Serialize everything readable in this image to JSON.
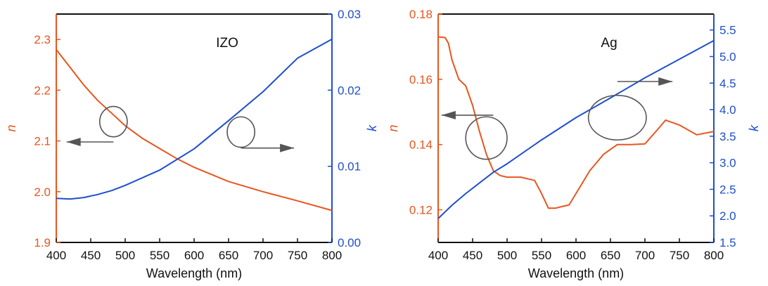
{
  "colors": {
    "n_series": "#e8561e",
    "k_series": "#1f4fcf",
    "frame": "#111111",
    "annotation": "#555555"
  },
  "chart_data": [
    {
      "type": "line",
      "annotation": "IZO",
      "xlabel": "Wavelength (nm)",
      "ylabel_left": "n",
      "ylabel_right": "k",
      "xlim": [
        400,
        800
      ],
      "ylim_left": [
        1.9,
        2.35
      ],
      "ylim_right": [
        0.0,
        0.03
      ],
      "x_ticks": [
        "400",
        "450",
        "500",
        "550",
        "600",
        "650",
        "700",
        "750",
        "800"
      ],
      "y_left_ticks": [
        "1.9",
        "2.0",
        "2.1",
        "2.2",
        "2.3"
      ],
      "y_right_ticks": [
        "0.00",
        "0.01",
        "0.02",
        "0.03"
      ],
      "series": [
        {
          "axis": "left",
          "color": "#e8561e",
          "x": [
            400,
            420,
            440,
            460,
            480,
            500,
            525,
            550,
            575,
            600,
            650,
            700,
            750,
            800
          ],
          "y": [
            2.28,
            2.245,
            2.21,
            2.18,
            2.155,
            2.13,
            2.105,
            2.085,
            2.065,
            2.048,
            2.02,
            2.0,
            1.982,
            1.963
          ]
        },
        {
          "axis": "right",
          "color": "#1f4fcf",
          "x": [
            400,
            420,
            440,
            460,
            480,
            500,
            550,
            600,
            650,
            700,
            750,
            800
          ],
          "y": [
            0.0058,
            0.0057,
            0.0059,
            0.0063,
            0.0068,
            0.0075,
            0.0095,
            0.0123,
            0.016,
            0.0198,
            0.0242,
            0.0267
          ]
        }
      ],
      "markers": [
        {
          "center": [
            483,
            2.138
          ],
          "rx": 20,
          "ry_left": 0.03,
          "arrow_from": [
            483,
            2.098
          ],
          "arrow_to": [
            415,
            2.098
          ]
        },
        {
          "center": [
            668,
            0.0145
          ],
          "rx": 20,
          "ry_right": 0.002,
          "arrow_from": [
            668,
            0.0124
          ],
          "arrow_to": [
            745,
            0.0124
          ]
        }
      ]
    },
    {
      "type": "line",
      "annotation": "Ag",
      "xlabel": "Wavelength (nm)",
      "ylabel_left": "n",
      "ylabel_right": "k",
      "xlim": [
        400,
        800
      ],
      "ylim_left": [
        0.11,
        0.18
      ],
      "ylim_right": [
        1.5,
        5.8
      ],
      "x_ticks": [
        "400",
        "450",
        "500",
        "550",
        "600",
        "650",
        "700",
        "750",
        "800"
      ],
      "y_left_ticks": [
        "0.12",
        "0.14",
        "0.16",
        "0.18"
      ],
      "y_right_ticks": [
        "1.5",
        "2.0",
        "2.5",
        "3.0",
        "3.5",
        "4.0",
        "4.5",
        "5.0",
        "5.5"
      ],
      "series": [
        {
          "axis": "left",
          "color": "#e8561e",
          "x": [
            400,
            410,
            415,
            420,
            430,
            440,
            450,
            460,
            470,
            480,
            490,
            500,
            520,
            540,
            550,
            560,
            570,
            580,
            590,
            600,
            620,
            640,
            660,
            680,
            700,
            720,
            730,
            750,
            775,
            800
          ],
          "y": [
            0.173,
            0.1728,
            0.171,
            0.166,
            0.16,
            0.158,
            0.152,
            0.144,
            0.137,
            0.132,
            0.1305,
            0.13,
            0.13,
            0.129,
            0.125,
            0.1205,
            0.1205,
            0.121,
            0.1215,
            0.125,
            0.132,
            0.137,
            0.14,
            0.14,
            0.1402,
            0.145,
            0.1475,
            0.146,
            0.143,
            0.144
          ]
        },
        {
          "axis": "right",
          "color": "#1f4fcf",
          "x": [
            400,
            420,
            440,
            460,
            480,
            500,
            550,
            600,
            650,
            700,
            750,
            800
          ],
          "y": [
            1.95,
            2.2,
            2.42,
            2.62,
            2.82,
            2.98,
            3.43,
            3.85,
            4.22,
            4.6,
            4.95,
            5.3
          ]
        }
      ],
      "markers": [
        {
          "center": [
            470,
            0.142
          ],
          "rx": 30,
          "ry_left": 0.0065,
          "arrow_from": [
            480,
            0.149
          ],
          "arrow_to": [
            405,
            0.149
          ]
        },
        {
          "center": [
            660,
            3.85
          ],
          "rx": 42,
          "ry_right": 0.42,
          "arrow_from": [
            660,
            4.53
          ],
          "arrow_to": [
            740,
            4.53
          ]
        }
      ]
    }
  ]
}
